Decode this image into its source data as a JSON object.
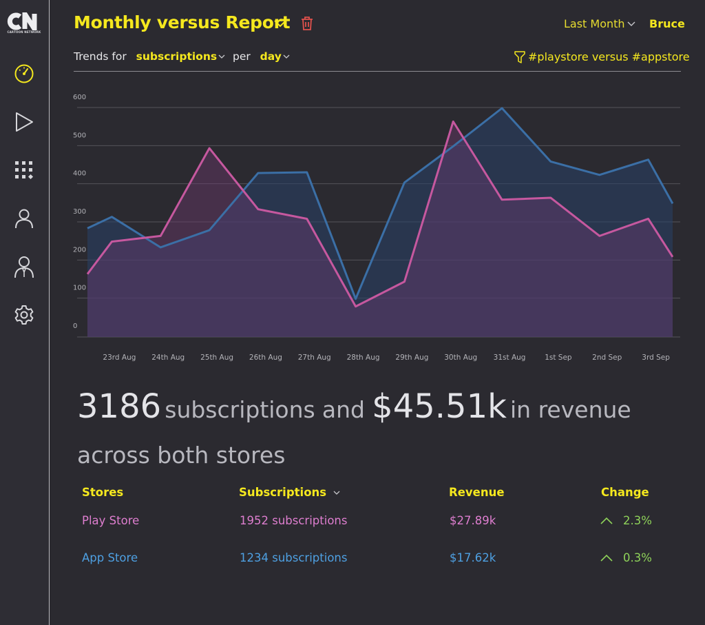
{
  "brand": {
    "logo_text": "CN",
    "logo_sub": "CARTOON NETWORK"
  },
  "sidebar": {
    "items": [
      {
        "icon": "dashboard-gauge-icon",
        "active": true
      },
      {
        "icon": "play-icon"
      },
      {
        "icon": "apps-grid-icon"
      },
      {
        "icon": "user-icon"
      },
      {
        "icon": "users-icon"
      },
      {
        "icon": "gear-icon"
      }
    ]
  },
  "header": {
    "title": "Monthly versus Report",
    "period": "Last Month",
    "user": "Bruce"
  },
  "trends": {
    "prefix": "Trends for",
    "metric": "subscriptions",
    "per": "per",
    "interval": "day",
    "filter": "#playstore versus #appstore"
  },
  "colors": {
    "accent": "#f5e81e",
    "play": "#c6589f",
    "app": "#3b6fa6",
    "positive": "#8fd35a"
  },
  "chart_data": {
    "type": "area",
    "ylim": [
      0,
      600
    ],
    "yticks": [
      0,
      100,
      200,
      300,
      400,
      500,
      600
    ],
    "categories": [
      "23rd Aug",
      "24th Aug",
      "25th Aug",
      "26th Aug",
      "27th Aug",
      "28th Aug",
      "29th Aug",
      "30th Aug",
      "31st Aug",
      "1st Sep",
      "2nd Sep",
      "3rd Sep"
    ],
    "series": [
      {
        "name": "App Store",
        "x": [
          22.5,
          23,
          24,
          25,
          26,
          27,
          28,
          29,
          30,
          31,
          32,
          33,
          34,
          34.5
        ],
        "values": [
          285,
          315,
          235,
          280,
          430,
          432,
          100,
          405,
          500,
          600,
          460,
          425,
          465,
          350
        ]
      },
      {
        "name": "Play Store",
        "x": [
          22.5,
          23,
          24,
          25,
          26,
          27,
          28,
          29,
          30,
          31,
          32,
          33,
          34,
          34.5
        ],
        "values": [
          165,
          250,
          265,
          495,
          335,
          310,
          80,
          145,
          565,
          360,
          365,
          265,
          310,
          210
        ]
      }
    ]
  },
  "summary": {
    "subs_count": "3186",
    "subs_label": "subscriptions",
    "and": "and",
    "revenue": "$45.51k",
    "revenue_label": "in revenue",
    "scope": "across both stores"
  },
  "table": {
    "headers": {
      "stores": "Stores",
      "subscriptions": "Subscriptions",
      "revenue": "Revenue",
      "change": "Change"
    },
    "rows": [
      {
        "store": "Play Store",
        "subs": "1952 subscriptions",
        "revenue": "$27.89k",
        "change": "2.3%"
      },
      {
        "store": "App Store",
        "subs": "1234 subscriptions",
        "revenue": "$17.62k",
        "change": "0.3%"
      }
    ]
  }
}
